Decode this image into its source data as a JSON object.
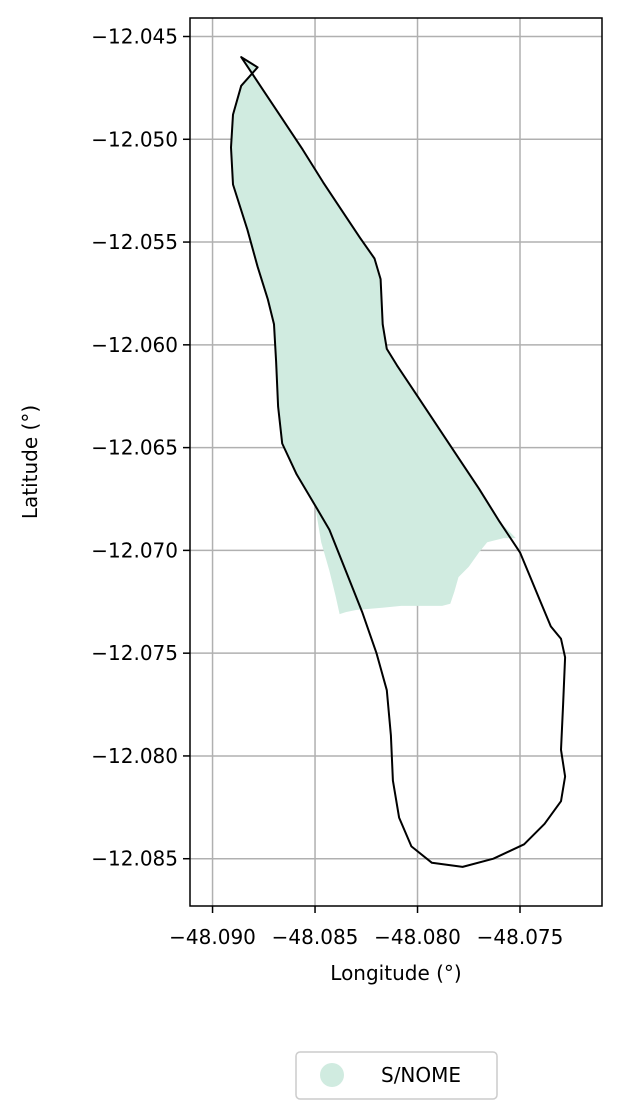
{
  "chart_data": {
    "type": "map",
    "xlabel": "Longitude (°)",
    "ylabel": "Latitude (°)",
    "xlim": [
      -48.0911,
      -48.071
    ],
    "ylim": [
      -12.0873,
      -12.0441
    ],
    "grid": true,
    "xticks": [
      -48.09,
      -48.085,
      -48.08,
      -48.075
    ],
    "xtick_labels": [
      "−48.090",
      "−48.085",
      "−48.080",
      "−48.075"
    ],
    "yticks": [
      -12.045,
      -12.05,
      -12.055,
      -12.06,
      -12.065,
      -12.07,
      -12.075,
      -12.08,
      -12.085
    ],
    "ytick_labels": [
      "−12.045",
      "−12.050",
      "−12.055",
      "−12.060",
      "−12.065",
      "−12.070",
      "−12.075",
      "−12.080",
      "−12.085"
    ],
    "boundary": [
      [
        -48.0886,
        -12.046
      ],
      [
        -48.0876,
        -12.0475
      ],
      [
        -48.0866,
        -12.049
      ],
      [
        -48.0856,
        -12.0505
      ],
      [
        -48.0846,
        -12.0521
      ],
      [
        -48.0836,
        -12.0536
      ],
      [
        -48.0828,
        -12.0548
      ],
      [
        -48.0821,
        -12.0558
      ],
      [
        -48.0818,
        -12.0568
      ],
      [
        -48.0817,
        -12.059
      ],
      [
        -48.0815,
        -12.0602
      ],
      [
        -48.081,
        -12.061
      ],
      [
        -48.08,
        -12.0625
      ],
      [
        -48.079,
        -12.064
      ],
      [
        -48.078,
        -12.0655
      ],
      [
        -48.077,
        -12.067
      ],
      [
        -48.076,
        -12.0686
      ],
      [
        -48.075,
        -12.0701
      ],
      [
        -48.0745,
        -12.0713
      ],
      [
        -48.074,
        -12.0725
      ],
      [
        -48.0735,
        -12.0737
      ],
      [
        -48.073,
        -12.0743
      ],
      [
        -48.0728,
        -12.0752
      ],
      [
        -48.0729,
        -12.0775
      ],
      [
        -48.073,
        -12.0797
      ],
      [
        -48.0728,
        -12.081
      ],
      [
        -48.073,
        -12.0822
      ],
      [
        -48.0738,
        -12.0833
      ],
      [
        -48.0748,
        -12.0843
      ],
      [
        -48.0763,
        -12.085
      ],
      [
        -48.0778,
        -12.0854
      ],
      [
        -48.0793,
        -12.0852
      ],
      [
        -48.0803,
        -12.0844
      ],
      [
        -48.0809,
        -12.083
      ],
      [
        -48.0812,
        -12.0812
      ],
      [
        -48.0813,
        -12.079
      ],
      [
        -48.0815,
        -12.0768
      ],
      [
        -48.082,
        -12.075
      ],
      [
        -48.0827,
        -12.073
      ],
      [
        -48.0835,
        -12.071
      ],
      [
        -48.0843,
        -12.069
      ],
      [
        -48.085,
        -12.0678
      ],
      [
        -48.0859,
        -12.0663
      ],
      [
        -48.0866,
        -12.0648
      ],
      [
        -48.0868,
        -12.063
      ],
      [
        -48.0869,
        -12.0608
      ],
      [
        -48.087,
        -12.059
      ],
      [
        -48.0873,
        -12.0578
      ],
      [
        -48.0878,
        -12.0562
      ],
      [
        -48.0883,
        -12.0544
      ],
      [
        -48.089,
        -12.0522
      ],
      [
        -48.0891,
        -12.0504
      ],
      [
        -48.089,
        -12.0488
      ],
      [
        -48.0886,
        -12.0474
      ],
      [
        -48.0878,
        -12.0465
      ],
      [
        -48.0886,
        -12.046
      ]
    ],
    "fill_polygon": [
      [
        -48.0886,
        -12.046
      ],
      [
        -48.0876,
        -12.0475
      ],
      [
        -48.0866,
        -12.049
      ],
      [
        -48.0856,
        -12.0505
      ],
      [
        -48.0846,
        -12.0521
      ],
      [
        -48.0836,
        -12.0536
      ],
      [
        -48.0828,
        -12.0548
      ],
      [
        -48.0821,
        -12.0558
      ],
      [
        -48.0818,
        -12.0568
      ],
      [
        -48.0817,
        -12.059
      ],
      [
        -48.0815,
        -12.0602
      ],
      [
        -48.081,
        -12.061
      ],
      [
        -48.08,
        -12.0625
      ],
      [
        -48.079,
        -12.064
      ],
      [
        -48.078,
        -12.0655
      ],
      [
        -48.077,
        -12.067
      ],
      [
        -48.076,
        -12.0686
      ],
      [
        -48.0752,
        -12.0694
      ],
      [
        -48.0758,
        -12.0694
      ],
      [
        -48.0766,
        -12.0696
      ],
      [
        -48.077,
        -12.0701
      ],
      [
        -48.0775,
        -12.0708
      ],
      [
        -48.078,
        -12.0713
      ],
      [
        -48.0782,
        -12.072
      ],
      [
        -48.0784,
        -12.0726
      ],
      [
        -48.0788,
        -12.0727
      ],
      [
        -48.0795,
        -12.0727
      ],
      [
        -48.0808,
        -12.0727
      ],
      [
        -48.0818,
        -12.0728
      ],
      [
        -48.083,
        -12.0729
      ],
      [
        -48.0835,
        -12.073
      ],
      [
        -48.0838,
        -12.0731
      ],
      [
        -48.084,
        -12.0722
      ],
      [
        -48.0843,
        -12.071
      ],
      [
        -48.0847,
        -12.0696
      ],
      [
        -48.085,
        -12.0678
      ],
      [
        -48.0859,
        -12.0663
      ],
      [
        -48.0866,
        -12.0648
      ],
      [
        -48.0868,
        -12.063
      ],
      [
        -48.0869,
        -12.0608
      ],
      [
        -48.087,
        -12.059
      ],
      [
        -48.0873,
        -12.0578
      ],
      [
        -48.0878,
        -12.0562
      ],
      [
        -48.0883,
        -12.0544
      ],
      [
        -48.089,
        -12.0522
      ],
      [
        -48.0891,
        -12.0504
      ],
      [
        -48.089,
        -12.0488
      ],
      [
        -48.0886,
        -12.0474
      ],
      [
        -48.0878,
        -12.0465
      ],
      [
        -48.0886,
        -12.046
      ]
    ],
    "series": [
      {
        "name": "S/NOME",
        "color": "#d0ebe0"
      }
    ],
    "boundary_color": "#000000",
    "grid_color": "#b0b0b0",
    "legend_placement": "bottom-center"
  }
}
